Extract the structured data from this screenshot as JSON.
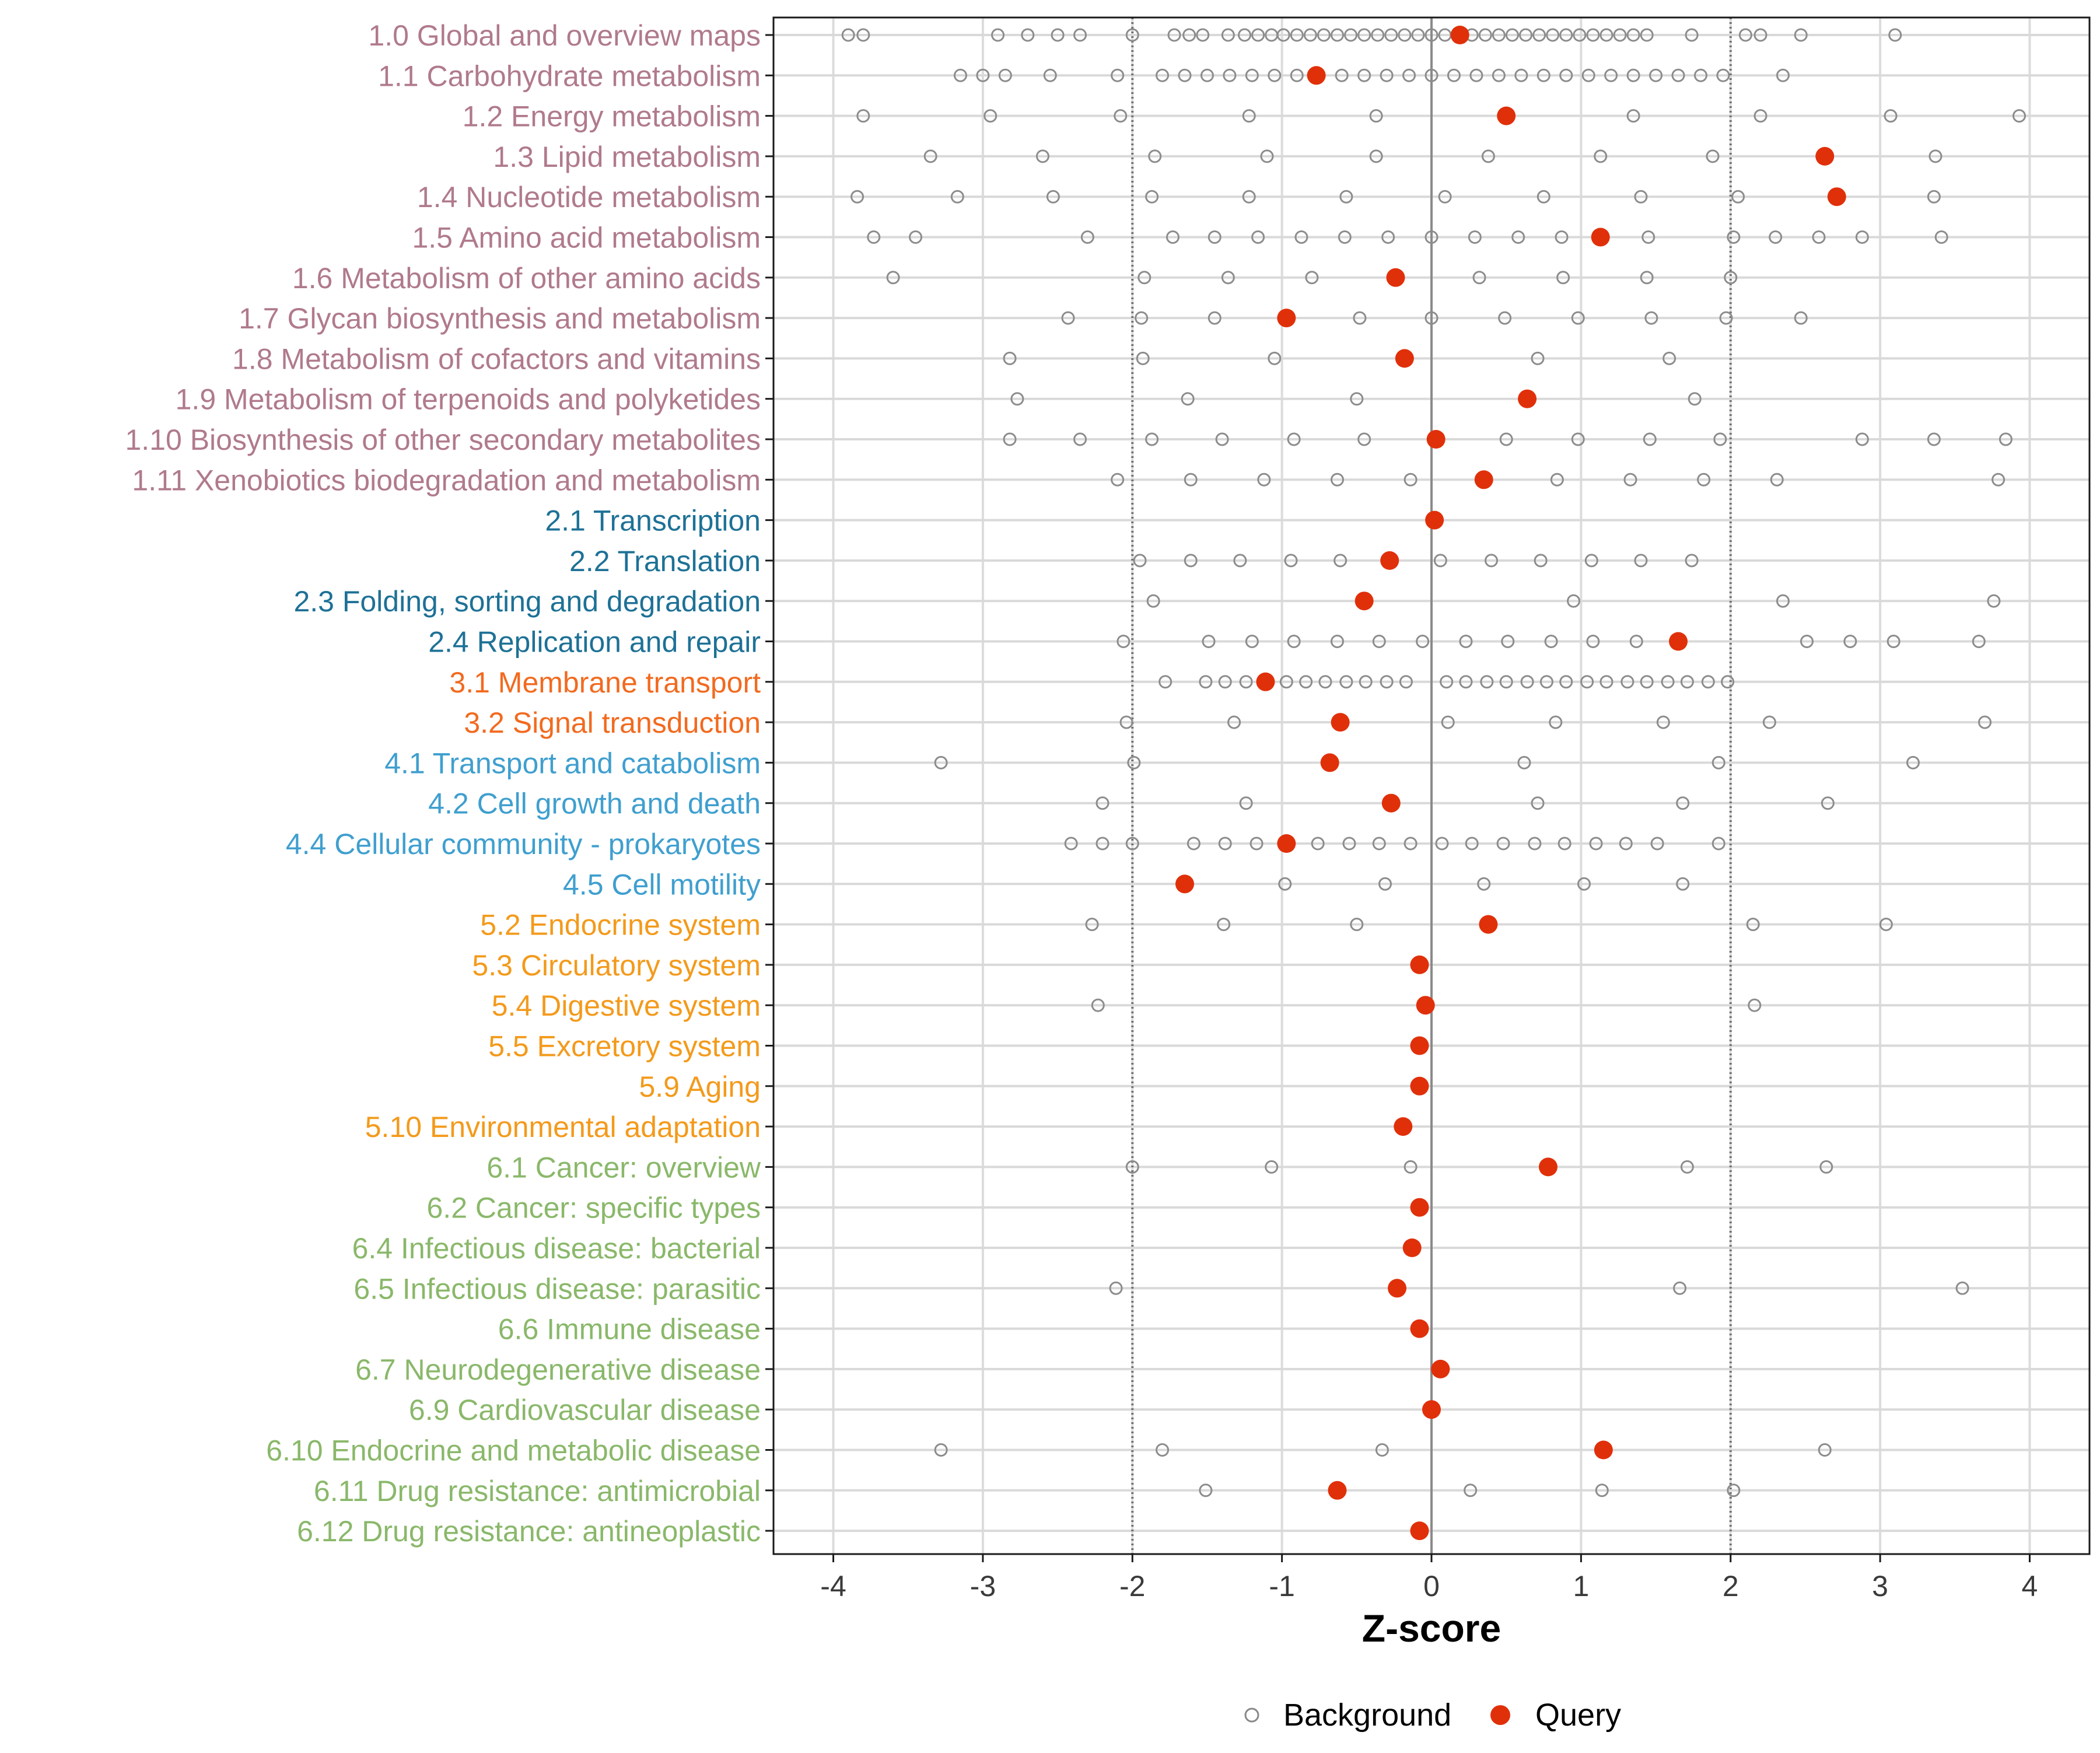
{
  "chart_data": {
    "type": "scatter",
    "title": "",
    "xlabel": "Z-score",
    "ylabel": "",
    "xlim": [
      -4.4,
      4.4
    ],
    "xticks": [
      -4,
      -3,
      -2,
      -1,
      0,
      1,
      2,
      3,
      4
    ],
    "xtick_labels": [
      "-4",
      "-3",
      "-2",
      "-1",
      "0",
      "1",
      "2",
      "3",
      "4"
    ],
    "reference_lines": {
      "solid": [
        0
      ],
      "dotted": [
        -2,
        2
      ]
    },
    "grid": true,
    "legend": {
      "position": "bottom",
      "items": [
        {
          "name": "Background",
          "marker": "open-circle",
          "color": "#888888"
        },
        {
          "name": "Query",
          "marker": "filled-circle",
          "color": "#E0300A"
        }
      ]
    },
    "group_colors": {
      "1": "#B07A8C",
      "2": "#1E7196",
      "3": "#F26A1F",
      "4": "#3F9FCF",
      "5": "#F39A1B",
      "6": "#8AB86A"
    },
    "categories": [
      {
        "label": "1.0 Global and overview maps",
        "group": "1",
        "query": 0.19,
        "background": [
          -3.9,
          -3.8,
          -2.9,
          -2.7,
          -2.5,
          -2.35,
          -2.0,
          -1.72,
          -1.62,
          -1.53,
          -1.36,
          -1.25,
          -1.16,
          -1.07,
          -0.99,
          -0.9,
          -0.81,
          -0.72,
          -0.63,
          -0.54,
          -0.45,
          -0.36,
          -0.27,
          -0.18,
          -0.09,
          0.0,
          0.09,
          0.27,
          0.36,
          0.45,
          0.54,
          0.63,
          0.72,
          0.81,
          0.9,
          0.99,
          1.08,
          1.17,
          1.26,
          1.35,
          1.44,
          1.74,
          2.1,
          2.2,
          2.47,
          3.1
        ]
      },
      {
        "label": "1.1 Carbohydrate metabolism",
        "group": "1",
        "query": -0.77,
        "background": [
          -3.15,
          -3.0,
          -2.85,
          -2.55,
          -2.1,
          -1.8,
          -1.65,
          -1.5,
          -1.35,
          -1.2,
          -1.05,
          -0.9,
          -0.6,
          -0.45,
          -0.3,
          -0.15,
          0.0,
          0.15,
          0.3,
          0.45,
          0.6,
          0.75,
          0.9,
          1.05,
          1.2,
          1.35,
          1.5,
          1.65,
          1.8,
          1.95,
          2.35
        ]
      },
      {
        "label": "1.2 Energy metabolism",
        "group": "1",
        "query": 0.5,
        "background": [
          -3.8,
          -2.95,
          -2.08,
          -1.22,
          -0.37,
          1.35,
          2.2,
          3.07,
          3.93
        ]
      },
      {
        "label": "1.3 Lipid metabolism",
        "group": "1",
        "query": 2.63,
        "background": [
          -3.35,
          -2.6,
          -1.85,
          -1.1,
          -0.37,
          0.38,
          1.13,
          1.88,
          3.37
        ]
      },
      {
        "label": "1.4 Nucleotide metabolism",
        "group": "1",
        "query": 2.71,
        "background": [
          -3.84,
          -3.17,
          -2.53,
          -1.87,
          -1.22,
          -0.57,
          0.09,
          0.75,
          1.4,
          2.05,
          3.36
        ]
      },
      {
        "label": "1.5 Amino acid metabolism",
        "group": "1",
        "query": 1.13,
        "background": [
          -3.73,
          -3.45,
          -2.3,
          -1.73,
          -1.45,
          -1.16,
          -0.87,
          -0.58,
          -0.29,
          0.0,
          0.29,
          0.58,
          0.87,
          1.45,
          2.02,
          2.3,
          2.59,
          2.88,
          3.41
        ]
      },
      {
        "label": "1.6 Metabolism of other amino acids",
        "group": "1",
        "query": -0.24,
        "background": [
          -3.6,
          -1.92,
          -1.36,
          -0.8,
          0.32,
          0.88,
          1.44,
          2.0
        ]
      },
      {
        "label": "1.7 Glycan biosynthesis and metabolism",
        "group": "1",
        "query": -0.97,
        "background": [
          -2.43,
          -1.94,
          -1.45,
          -0.48,
          0.0,
          0.49,
          0.98,
          1.47,
          1.97,
          2.47
        ]
      },
      {
        "label": "1.8 Metabolism of cofactors and vitamins",
        "group": "1",
        "query": -0.18,
        "background": [
          -2.82,
          -1.93,
          -1.05,
          0.71,
          1.59
        ]
      },
      {
        "label": "1.9 Metabolism of terpenoids and polyketides",
        "group": "1",
        "query": 0.64,
        "background": [
          -2.77,
          -1.63,
          -0.5,
          1.76
        ]
      },
      {
        "label": "1.10 Biosynthesis of other secondary metabolites",
        "group": "1",
        "query": 0.03,
        "background": [
          -2.82,
          -2.35,
          -1.87,
          -1.4,
          -0.92,
          -0.45,
          0.5,
          0.98,
          1.46,
          1.93,
          2.88,
          3.36,
          3.84
        ]
      },
      {
        "label": "1.11 Xenobiotics biodegradation and metabolism",
        "group": "1",
        "query": 0.35,
        "background": [
          -2.1,
          -1.61,
          -1.12,
          -0.63,
          -0.14,
          0.84,
          1.33,
          1.82,
          2.31,
          3.79
        ]
      },
      {
        "label": "2.1 Transcription",
        "group": "2",
        "query": 0.02,
        "background": []
      },
      {
        "label": "2.2 Translation",
        "group": "2",
        "query": -0.28,
        "background": [
          -1.95,
          -1.61,
          -1.28,
          -0.94,
          -0.61,
          0.06,
          0.4,
          0.73,
          1.07,
          1.4,
          1.74
        ]
      },
      {
        "label": "2.3 Folding, sorting and degradation",
        "group": "2",
        "query": -0.45,
        "background": [
          -1.86,
          0.95,
          2.35,
          3.76
        ]
      },
      {
        "label": "2.4 Replication and repair",
        "group": "2",
        "query": 1.65,
        "background": [
          -2.06,
          -1.49,
          -1.2,
          -0.92,
          -0.63,
          -0.35,
          -0.06,
          0.23,
          0.51,
          0.8,
          1.08,
          1.37,
          2.51,
          2.8,
          3.09,
          3.66
        ]
      },
      {
        "label": "3.1 Membrane transport",
        "group": "3",
        "query": -1.11,
        "background": [
          -1.78,
          -1.51,
          -1.38,
          -1.24,
          -0.97,
          -0.84,
          -0.71,
          -0.57,
          -0.44,
          -0.3,
          -0.17,
          0.1,
          0.23,
          0.37,
          0.5,
          0.64,
          0.77,
          0.9,
          1.04,
          1.17,
          1.31,
          1.44,
          1.58,
          1.71,
          1.85,
          1.98
        ]
      },
      {
        "label": "3.2 Signal transduction",
        "group": "3",
        "query": -0.61,
        "background": [
          -2.04,
          -1.32,
          0.11,
          0.83,
          1.55,
          2.26,
          3.7
        ]
      },
      {
        "label": "4.1 Transport and catabolism",
        "group": "4",
        "query": -0.68,
        "background": [
          -3.28,
          -1.99,
          0.62,
          1.92,
          3.22
        ]
      },
      {
        "label": "4.2 Cell growth and death",
        "group": "4",
        "query": -0.27,
        "background": [
          -2.2,
          -1.24,
          0.71,
          1.68,
          2.65
        ]
      },
      {
        "label": "4.4 Cellular community - prokaryotes",
        "group": "4",
        "query": -0.97,
        "background": [
          -2.41,
          -2.2,
          -2.0,
          -1.59,
          -1.38,
          -1.17,
          -0.76,
          -0.55,
          -0.35,
          -0.14,
          0.07,
          0.27,
          0.48,
          0.69,
          0.89,
          1.1,
          1.3,
          1.51,
          1.92
        ]
      },
      {
        "label": "4.5 Cell motility",
        "group": "4",
        "query": -1.65,
        "background": [
          -0.98,
          -0.31,
          0.35,
          1.02,
          1.68
        ]
      },
      {
        "label": "5.2 Endocrine system",
        "group": "5",
        "query": 0.38,
        "background": [
          -2.27,
          -1.39,
          -0.5,
          2.15,
          3.04
        ]
      },
      {
        "label": "5.3 Circulatory system",
        "group": "5",
        "query": -0.08,
        "background": []
      },
      {
        "label": "5.4 Digestive system",
        "group": "5",
        "query": -0.04,
        "background": [
          -2.23,
          2.16
        ]
      },
      {
        "label": "5.5 Excretory system",
        "group": "5",
        "query": -0.08,
        "background": []
      },
      {
        "label": "5.9 Aging",
        "group": "5",
        "query": -0.08,
        "background": []
      },
      {
        "label": "5.10 Environmental adaptation",
        "group": "5",
        "query": -0.19,
        "background": []
      },
      {
        "label": "6.1 Cancer: overview",
        "group": "6",
        "query": 0.78,
        "background": [
          -2.0,
          -1.07,
          -0.14,
          1.71,
          2.64
        ]
      },
      {
        "label": "6.2 Cancer: specific types",
        "group": "6",
        "query": -0.08,
        "background": []
      },
      {
        "label": "6.4 Infectious disease: bacterial",
        "group": "6",
        "query": -0.13,
        "background": []
      },
      {
        "label": "6.5 Infectious disease: parasitic",
        "group": "6",
        "query": -0.23,
        "background": [
          -2.11,
          1.66,
          3.55
        ]
      },
      {
        "label": "6.6 Immune disease",
        "group": "6",
        "query": -0.08,
        "background": []
      },
      {
        "label": "6.7 Neurodegenerative disease",
        "group": "6",
        "query": 0.06,
        "background": []
      },
      {
        "label": "6.9 Cardiovascular disease",
        "group": "6",
        "query": 0.0,
        "background": []
      },
      {
        "label": "6.10 Endocrine and metabolic disease",
        "group": "6",
        "query": 1.15,
        "background": [
          -3.28,
          -1.8,
          -0.33,
          2.63
        ]
      },
      {
        "label": "6.11 Drug resistance: antimicrobial",
        "group": "6",
        "query": -0.63,
        "background": [
          -1.51,
          0.26,
          1.14,
          2.02
        ]
      },
      {
        "label": "6.12 Drug resistance: antineoplastic",
        "group": "6",
        "query": -0.08,
        "background": []
      }
    ]
  }
}
